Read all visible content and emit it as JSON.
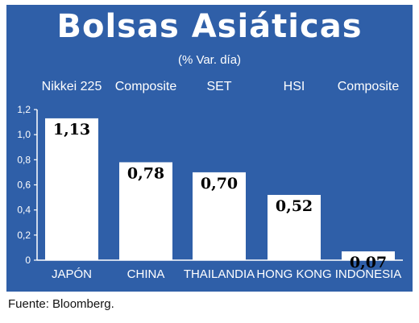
{
  "header": {
    "title": "Bolsas Asiáticas",
    "subtitle": "(% Var. día)"
  },
  "footer": {
    "source": "Fuente: Bloomberg."
  },
  "colors": {
    "panel": "#2f5fa8",
    "bar": "#ffffff",
    "text_on_panel": "#ffffff",
    "value_label": "#000000"
  },
  "chart_data": {
    "type": "bar",
    "title": "Bolsas Asiáticas",
    "subtitle": "(% Var. día)",
    "categories": [
      "JAPÓN",
      "CHINA",
      "THAILANDIA",
      "HONG KONG",
      "INDONESIA"
    ],
    "index_names": [
      "Nikkei 225",
      "Composite",
      "SET",
      "HSI",
      "Composite"
    ],
    "values": [
      1.13,
      0.78,
      0.7,
      0.52,
      0.07
    ],
    "value_labels": [
      "1,13",
      "0,78",
      "0,70",
      "0,52",
      "0,07"
    ],
    "ylim": [
      0,
      1.2
    ],
    "yticks": [
      0,
      0.2,
      0.4,
      0.6,
      0.8,
      1.0,
      1.2
    ],
    "ytick_labels": [
      "0",
      "0,2",
      "0,4",
      "0,6",
      "0,8",
      "1,0",
      "1,2"
    ],
    "grid": false,
    "legend": "none"
  }
}
